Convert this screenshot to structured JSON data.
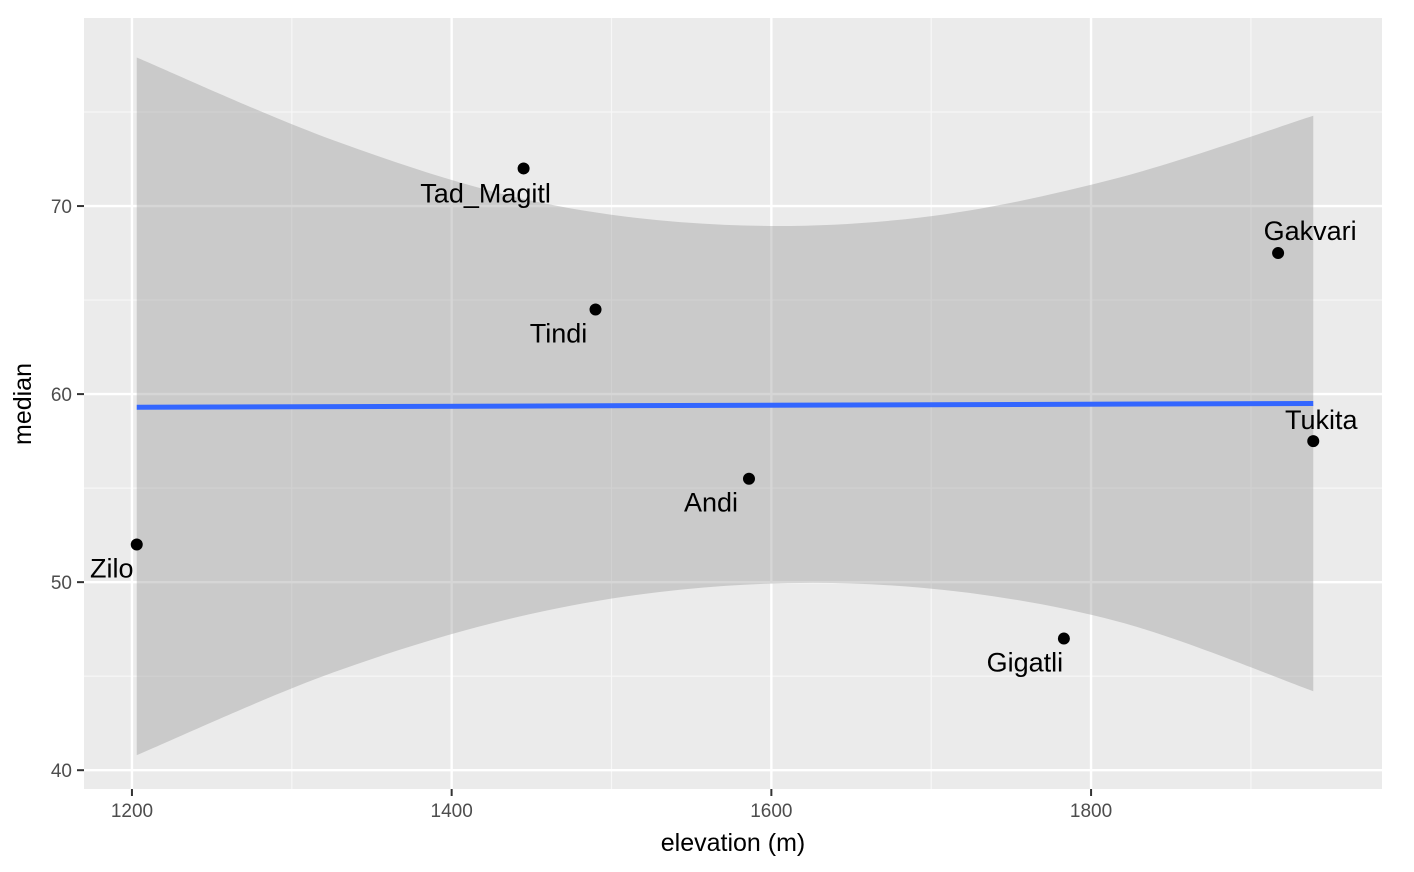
{
  "chart_data": {
    "type": "scatter",
    "title": "",
    "xlabel": "elevation (m)",
    "ylabel": "median",
    "xlim": [
      1170,
      1982
    ],
    "ylim": [
      39,
      80
    ],
    "x_ticks": [
      1200,
      1400,
      1600,
      1800
    ],
    "y_ticks": [
      40,
      50,
      60,
      70
    ],
    "x_minor_ticks": [
      1300,
      1500,
      1700,
      1900
    ],
    "y_minor_ticks": [
      45,
      55,
      65,
      75
    ],
    "grid": true,
    "points": [
      {
        "label": "Zilo",
        "x": 1203,
        "y": 52.0
      },
      {
        "label": "Tad_Magitl",
        "x": 1445,
        "y": 72.0
      },
      {
        "label": "Tindi",
        "x": 1490,
        "y": 64.5
      },
      {
        "label": "Andi",
        "x": 1586,
        "y": 55.5
      },
      {
        "label": "Gigatli",
        "x": 1783,
        "y": 47.0
      },
      {
        "label": "Gakvari",
        "x": 1917,
        "y": 67.5
      },
      {
        "label": "Tukita",
        "x": 1939,
        "y": 57.5
      }
    ],
    "fit_line": {
      "method": "lm",
      "x": [
        1203,
        1939
      ],
      "y": [
        59.3,
        59.5
      ]
    },
    "confidence_band": {
      "x": [
        1203,
        1326,
        1449,
        1571,
        1694,
        1817,
        1939
      ],
      "upper": [
        77.9,
        73.5,
        70.3,
        69.0,
        69.4,
        71.5,
        74.8
      ],
      "lower": [
        40.8,
        45.2,
        48.3,
        49.8,
        49.7,
        47.9,
        44.2
      ]
    },
    "colors": {
      "panel_background": "#ebebeb",
      "grid_major": "#ffffff",
      "grid_minor": "#f7f7f7",
      "band_fill": "#999999",
      "fit_line": "#3366ff",
      "point": "#000000",
      "tick_label": "#4d4d4d",
      "tick_mark": "#333333"
    }
  }
}
